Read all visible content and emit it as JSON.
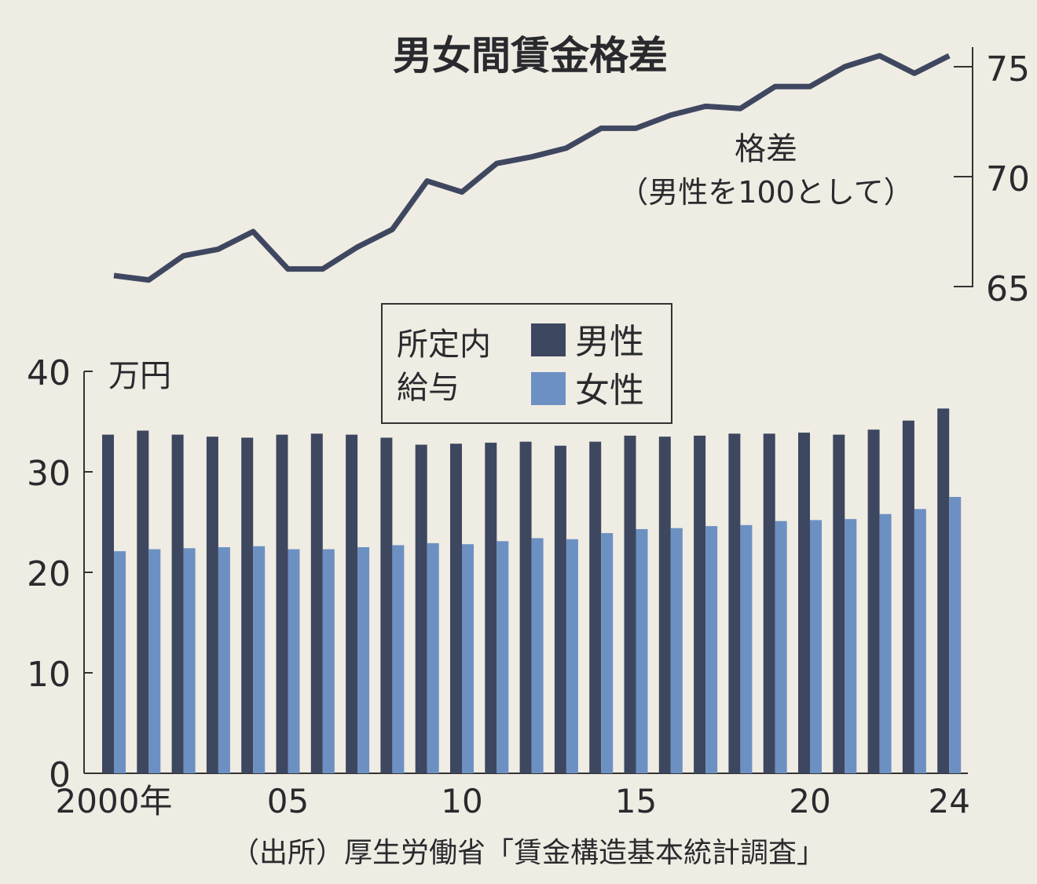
{
  "chart_data": [
    {
      "type": "line",
      "title": "男女間賃金格差",
      "label": "格差",
      "sublabel": "（男性を100として）",
      "x": [
        2000,
        2001,
        2002,
        2003,
        2004,
        2005,
        2006,
        2007,
        2008,
        2009,
        2010,
        2011,
        2012,
        2013,
        2014,
        2015,
        2016,
        2017,
        2018,
        2019,
        2020,
        2021,
        2022,
        2023,
        2024
      ],
      "values": [
        65.5,
        65.3,
        66.4,
        66.7,
        67.5,
        65.8,
        65.8,
        66.8,
        67.6,
        69.8,
        69.3,
        70.6,
        70.9,
        71.3,
        72.2,
        72.2,
        72.8,
        73.2,
        73.1,
        74.1,
        74.1,
        75.0,
        75.5,
        74.7,
        75.5
      ],
      "yticks": [
        "65",
        "70",
        "75"
      ],
      "ylim": [
        65,
        75
      ],
      "color": "#3f4760"
    },
    {
      "type": "bar",
      "ylabel": "万円",
      "ylim": [
        0,
        40
      ],
      "yticks": [
        "0",
        "10",
        "20",
        "30",
        "40"
      ],
      "xticks": [
        {
          "year": 2000,
          "label": "2000年"
        },
        {
          "year": 2005,
          "label": "05"
        },
        {
          "year": 2010,
          "label": "10"
        },
        {
          "year": 2015,
          "label": "15"
        },
        {
          "year": 2020,
          "label": "20"
        },
        {
          "year": 2024,
          "label": "24"
        }
      ],
      "legend_title": [
        "所定内",
        "給与"
      ],
      "categories": [
        2000,
        2001,
        2002,
        2003,
        2004,
        2005,
        2006,
        2007,
        2008,
        2009,
        2010,
        2011,
        2012,
        2013,
        2014,
        2015,
        2016,
        2017,
        2018,
        2019,
        2020,
        2021,
        2022,
        2023,
        2024
      ],
      "series": [
        {
          "name": "男性",
          "color": "#3d475f",
          "values": [
            33.7,
            34.1,
            33.7,
            33.5,
            33.4,
            33.7,
            33.8,
            33.7,
            33.4,
            32.7,
            32.8,
            32.9,
            33.0,
            32.6,
            33.0,
            33.6,
            33.5,
            33.6,
            33.8,
            33.8,
            33.9,
            33.7,
            34.2,
            35.1,
            36.3
          ]
        },
        {
          "name": "女性",
          "color": "#6d90c2",
          "values": [
            22.1,
            22.3,
            22.4,
            22.5,
            22.6,
            22.3,
            22.3,
            22.5,
            22.7,
            22.9,
            22.8,
            23.1,
            23.4,
            23.3,
            23.9,
            24.3,
            24.4,
            24.6,
            24.7,
            25.1,
            25.2,
            25.3,
            25.8,
            26.3,
            27.5
          ]
        }
      ]
    }
  ],
  "source": "（出所）厚生労働省「賃金構造基本統計調査」"
}
